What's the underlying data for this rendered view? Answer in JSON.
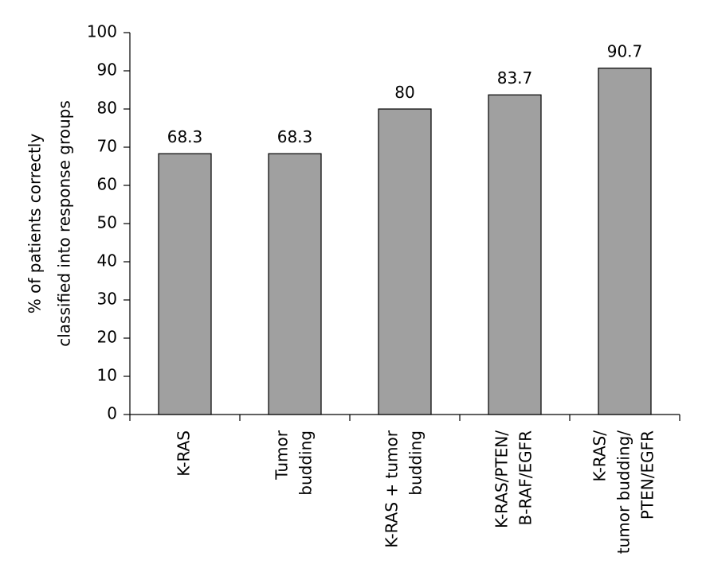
{
  "chart_data": {
    "type": "bar",
    "categories": [
      [
        "K-RAS"
      ],
      [
        "Tumor",
        "budding"
      ],
      [
        "K-RAS + tumor",
        "budding"
      ],
      [
        "K-RAS/PTEN/",
        "B-RAF/EGFR"
      ],
      [
        "K-RAS/",
        "tumor budding/",
        "PTEN/EGFR"
      ]
    ],
    "values": [
      68.3,
      68.3,
      80,
      83.7,
      90.7
    ],
    "value_labels": [
      "68.3",
      "68.3",
      "80",
      "83.7",
      "90.7"
    ],
    "ylabel": [
      "% of patients correctly",
      "classified into response groups"
    ],
    "ylim": [
      0,
      100
    ],
    "yticks": [
      0,
      10,
      20,
      30,
      40,
      50,
      60,
      70,
      80,
      90,
      100
    ],
    "grid": false,
    "bar_color": "#a0a0a0"
  }
}
